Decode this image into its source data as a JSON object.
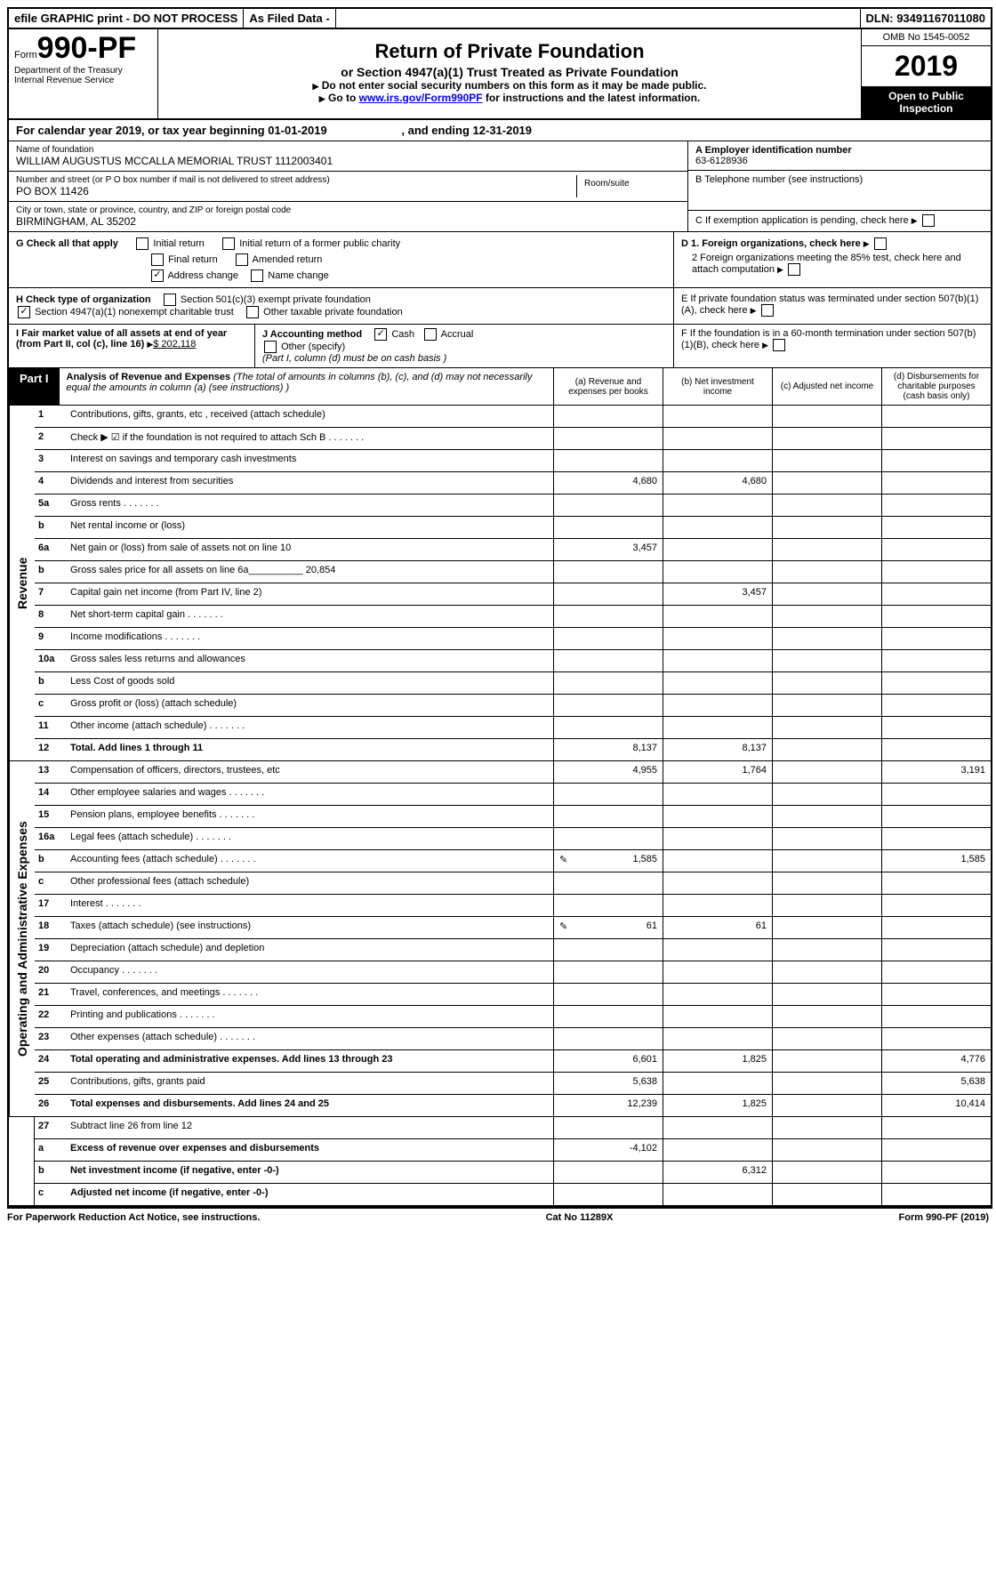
{
  "top": {
    "efile": "efile GRAPHIC print - DO NOT PROCESS",
    "asfiled": "As Filed Data -",
    "dln": "DLN: 93491167011080"
  },
  "header": {
    "form": "Form",
    "formnum": "990-PF",
    "dept": "Department of the Treasury",
    "irs": "Internal Revenue Service",
    "title": "Return of Private Foundation",
    "subtitle": "or Section 4947(a)(1) Trust Treated as Private Foundation",
    "note1": "Do not enter social security numbers on this form as it may be made public.",
    "note2": "Go to ",
    "link": "www.irs.gov/Form990PF",
    "note3": " for instructions and the latest information.",
    "omb": "OMB No 1545-0052",
    "year": "2019",
    "inspect": "Open to Public Inspection"
  },
  "yearline": {
    "text1": "For calendar year 2019, or tax year beginning 01-01-2019",
    "text2": ", and ending 12-31-2019"
  },
  "info": {
    "name_label": "Name of foundation",
    "name": "WILLIAM AUGUSTUS MCCALLA MEMORIAL TRUST 1112003401",
    "addr_label": "Number and street (or P O  box number if mail is not delivered to street address)",
    "addr": "PO BOX 11426",
    "room_label": "Room/suite",
    "city_label": "City or town, state or province, country, and ZIP or foreign postal code",
    "city": "BIRMINGHAM, AL  35202",
    "A_label": "A Employer identification number",
    "A_val": "63-6128936",
    "B_label": "B Telephone number (see instructions)",
    "C_label": "C If exemption application is pending, check here",
    "D1": "D 1. Foreign organizations, check here",
    "D2": "2 Foreign organizations meeting the 85% test, check here and attach computation",
    "E": "E  If private foundation status was terminated under section 507(b)(1)(A), check here",
    "F": "F  If the foundation is in a 60-month termination under section 507(b)(1)(B), check here"
  },
  "G": {
    "label": "G Check all that apply",
    "initial": "Initial return",
    "final": "Final return",
    "address": "Address change",
    "initial_former": "Initial return of a former public charity",
    "amended": "Amended return",
    "name": "Name change"
  },
  "H": {
    "label": "H Check type of organization",
    "s501": "Section 501(c)(3) exempt private foundation",
    "s4947": "Section 4947(a)(1) nonexempt charitable trust",
    "other": "Other taxable private foundation"
  },
  "I": {
    "label": "I Fair market value of all assets at end of year (from Part II, col  (c), line 16)",
    "val": "$  202,118"
  },
  "J": {
    "label": "J Accounting method",
    "cash": "Cash",
    "accrual": "Accrual",
    "other": "Other (specify)",
    "note": "(Part I, column (d) must be on cash basis )"
  },
  "part1": {
    "label": "Part I",
    "title": "Analysis of Revenue and Expenses",
    "note": " (The total of amounts in columns (b), (c), and (d) may not necessarily equal the amounts in column (a) (see instructions) )",
    "colA": "(a) Revenue and expenses per books",
    "colB": "(b) Net investment income",
    "colC": "(c) Adjusted net income",
    "colD": "(d) Disbursements for charitable purposes (cash basis only)"
  },
  "revenue_label": "Revenue",
  "expense_label": "Operating and Administrative Expenses",
  "revenue": [
    {
      "n": "1",
      "d": "Contributions, gifts, grants, etc , received (attach schedule)"
    },
    {
      "n": "2",
      "d": "Check ▶ ☑ if the foundation is not required to attach Sch B",
      "dots": true
    },
    {
      "n": "3",
      "d": "Interest on savings and temporary cash investments"
    },
    {
      "n": "4",
      "d": "Dividends and interest from securities",
      "a": "4,680",
      "b": "4,680"
    },
    {
      "n": "5a",
      "d": "Gross rents",
      "dots": true
    },
    {
      "n": "b",
      "d": "Net rental income or (loss)"
    },
    {
      "n": "6a",
      "d": "Net gain or (loss) from sale of assets not on line 10",
      "a": "3,457"
    },
    {
      "n": "b",
      "d": "Gross sales price for all assets on line 6a__________ 20,854"
    },
    {
      "n": "7",
      "d": "Capital gain net income (from Part IV, line 2)",
      "b": "3,457"
    },
    {
      "n": "8",
      "d": "Net short-term capital gain",
      "dots": true
    },
    {
      "n": "9",
      "d": "Income modifications",
      "dots": true
    },
    {
      "n": "10a",
      "d": "Gross sales less returns and allowances"
    },
    {
      "n": "b",
      "d": "Less  Cost of goods sold"
    },
    {
      "n": "c",
      "d": "Gross profit or (loss) (attach schedule)"
    },
    {
      "n": "11",
      "d": "Other income (attach schedule)",
      "dots": true
    },
    {
      "n": "12",
      "d": "Total. Add lines 1 through 11",
      "bold": true,
      "a": "8,137",
      "b": "8,137"
    }
  ],
  "expenses": [
    {
      "n": "13",
      "d": "Compensation of officers, directors, trustees, etc",
      "a": "4,955",
      "b": "1,764",
      "dd": "3,191"
    },
    {
      "n": "14",
      "d": "Other employee salaries and wages",
      "dots": true
    },
    {
      "n": "15",
      "d": "Pension plans, employee benefits",
      "dots": true
    },
    {
      "n": "16a",
      "d": "Legal fees (attach schedule)",
      "dots": true
    },
    {
      "n": "b",
      "d": "Accounting fees (attach schedule)",
      "dots": true,
      "icon": true,
      "a": "1,585",
      "dd": "1,585"
    },
    {
      "n": "c",
      "d": "Other professional fees (attach schedule)"
    },
    {
      "n": "17",
      "d": "Interest",
      "dots": true
    },
    {
      "n": "18",
      "d": "Taxes (attach schedule) (see instructions)",
      "icon": true,
      "a": "61",
      "b": "61"
    },
    {
      "n": "19",
      "d": "Depreciation (attach schedule) and depletion"
    },
    {
      "n": "20",
      "d": "Occupancy",
      "dots": true
    },
    {
      "n": "21",
      "d": "Travel, conferences, and meetings",
      "dots": true
    },
    {
      "n": "22",
      "d": "Printing and publications",
      "dots": true
    },
    {
      "n": "23",
      "d": "Other expenses (attach schedule)",
      "dots": true
    },
    {
      "n": "24",
      "d": "Total operating and administrative expenses. Add lines 13 through 23",
      "bold": true,
      "a": "6,601",
      "b": "1,825",
      "dd": "4,776"
    },
    {
      "n": "25",
      "d": "Contributions, gifts, grants paid",
      "a": "5,638",
      "dd": "5,638"
    },
    {
      "n": "26",
      "d": "Total expenses and disbursements. Add lines 24 and 25",
      "bold": true,
      "a": "12,239",
      "b": "1,825",
      "dd": "10,414"
    }
  ],
  "bottom": [
    {
      "n": "27",
      "d": "Subtract line 26 from line 12"
    },
    {
      "n": "a",
      "d": "Excess of revenue over expenses and disbursements",
      "bold": true,
      "a": "-4,102"
    },
    {
      "n": "b",
      "d": "Net investment income (if negative, enter -0-)",
      "bold": true,
      "b": "6,312"
    },
    {
      "n": "c",
      "d": "Adjusted net income (if negative, enter -0-)",
      "bold": true
    }
  ],
  "footer": {
    "left": "For Paperwork Reduction Act Notice, see instructions.",
    "mid": "Cat No  11289X",
    "right": "Form 990-PF (2019)"
  }
}
